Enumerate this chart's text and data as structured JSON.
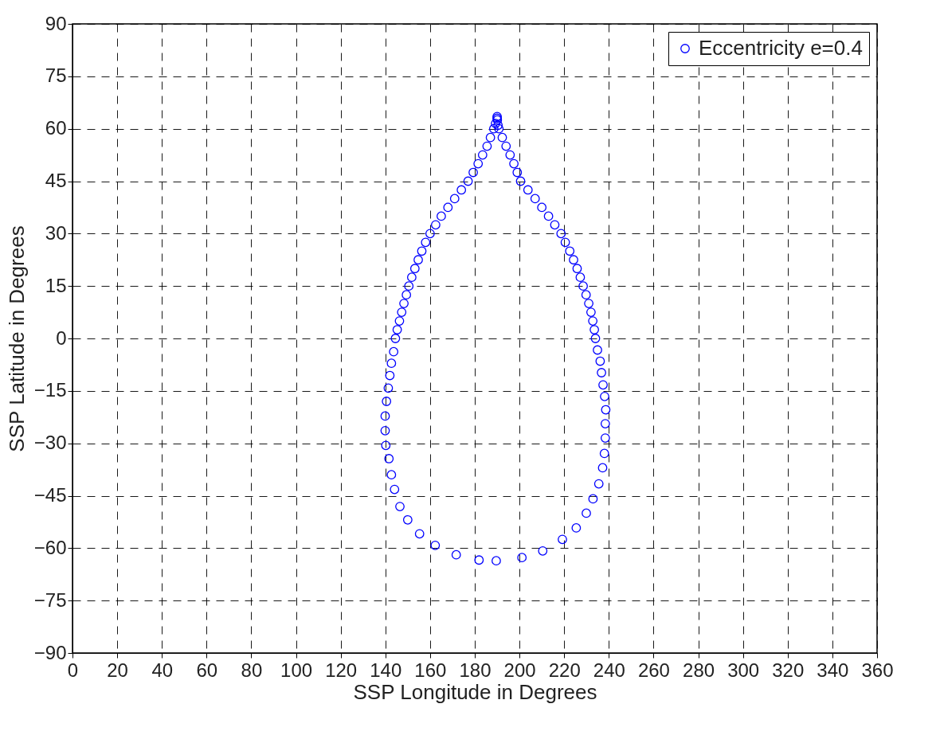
{
  "chart_data": {
    "type": "scatter",
    "xlabel": "SSP Longitude in Degrees",
    "ylabel": "SSP Latitude in Degrees",
    "xlim": [
      0,
      360
    ],
    "ylim": [
      -90,
      90
    ],
    "xticks": [
      0,
      20,
      40,
      60,
      80,
      100,
      120,
      140,
      160,
      180,
      200,
      220,
      240,
      260,
      280,
      300,
      320,
      340,
      360
    ],
    "yticks": [
      -90,
      -75,
      -60,
      -45,
      -30,
      -15,
      0,
      15,
      30,
      45,
      60,
      75,
      90
    ],
    "grid": true,
    "legend": "top right",
    "marker": "circle",
    "series": [
      {
        "name": "Eccentricity e=0.4",
        "color": "#0000ff",
        "x": [
          189.6,
          181.9,
          171.7,
          162.3,
          155.3,
          150.0,
          146.5,
          144.1,
          142.7,
          141.6,
          140.2,
          139.9,
          139.9,
          140.5,
          141.3,
          142.0,
          142.7,
          143.7,
          144.5,
          145.3,
          146.3,
          147.3,
          148.3,
          149.4,
          150.5,
          151.8,
          153.2,
          154.7,
          156.3,
          158.0,
          160.0,
          162.5,
          165.0,
          168.0,
          171.0,
          174.0,
          177.0,
          179.3,
          181.5,
          183.5,
          185.5,
          187.0,
          188.5,
          189.3,
          190.0,
          190.0,
          190.1,
          190.4,
          190.8,
          192.3,
          194.0,
          195.8,
          197.5,
          199.0,
          200.5,
          203.8,
          207.0,
          210.0,
          213.0,
          215.8,
          218.6,
          220.5,
          222.5,
          224.2,
          225.8,
          227.2,
          228.5,
          229.8,
          231.0,
          232.0,
          232.8,
          233.5,
          234.0,
          234.9,
          236.1,
          236.7,
          237.4,
          238.1,
          238.6,
          238.4,
          238.4,
          238.0,
          237.2,
          235.5,
          232.9,
          229.9,
          225.4,
          219.2,
          210.4,
          201.1
        ],
        "values": [
          -63.6,
          -63.4,
          -61.9,
          -59.2,
          -55.9,
          -51.9,
          -48.1,
          -43.2,
          -39.0,
          -34.4,
          -30.6,
          -26.4,
          -22.2,
          -18.0,
          -14.2,
          -10.6,
          -7.1,
          -3.8,
          0,
          2.5,
          5,
          7.5,
          10,
          12.5,
          15,
          17.5,
          20,
          22.5,
          25,
          27.5,
          30,
          32.5,
          35,
          37.5,
          40,
          42.5,
          45,
          47.5,
          50,
          52.5,
          55,
          57.5,
          60,
          61.5,
          63,
          63.5,
          62.5,
          61,
          60,
          57.5,
          55,
          52.5,
          50,
          47.5,
          45,
          42.5,
          40,
          37.5,
          35,
          32.5,
          30,
          27.5,
          25,
          22.5,
          20,
          17.5,
          15,
          12.5,
          10,
          7.5,
          5,
          2.5,
          0,
          -3.3,
          -6.5,
          -9.8,
          -13.3,
          -16.6,
          -20.4,
          -24.4,
          -28.5,
          -32.9,
          -37.0,
          -41.6,
          -45.9,
          -50.0,
          -54.2,
          -57.5,
          -60.8,
          -62.7
        ]
      }
    ]
  }
}
